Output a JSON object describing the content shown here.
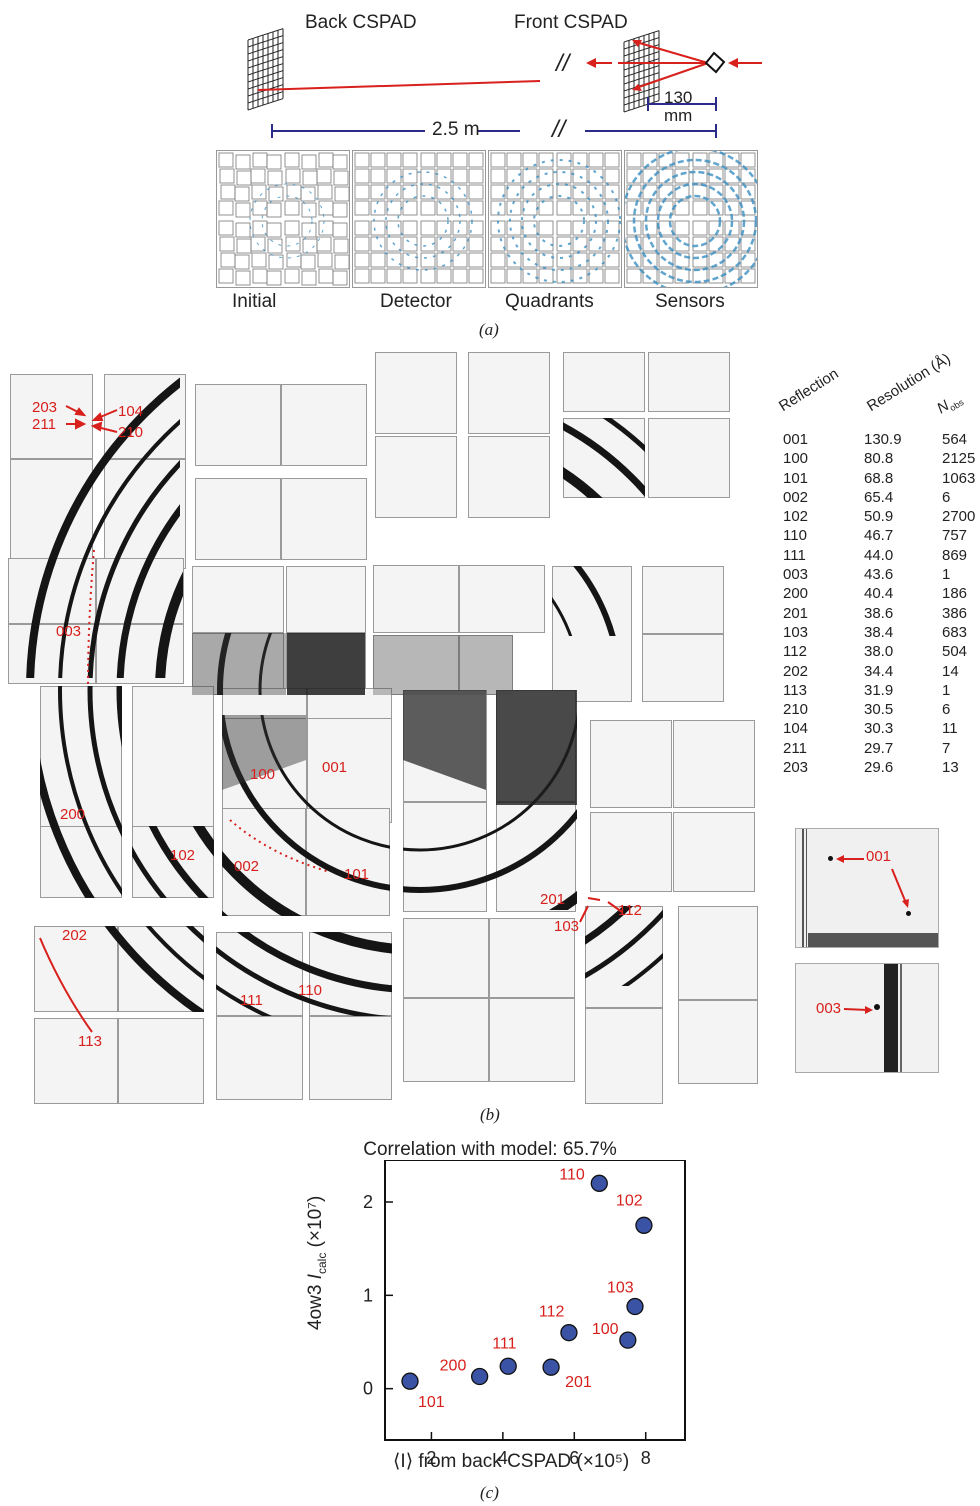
{
  "panel_a": {
    "back_label": "Back CSPAD",
    "front_label": "Front CSPAD",
    "break_symbol": "//",
    "distance_long": "2.5 m",
    "distance_short_num": "130",
    "distance_short_unit": "mm",
    "stage_labels": [
      "Initial",
      "Detector",
      "Quadrants",
      "Sensors"
    ],
    "caption": "(a)"
  },
  "panel_b": {
    "caption": "(b)",
    "labels": {
      "l203": "203",
      "l104": "104",
      "l211": "211",
      "l210": "210",
      "l003": "003",
      "l200": "200",
      "l100": "100",
      "l001": "001",
      "l102": "102",
      "l002": "002",
      "l101": "101",
      "l202": "202",
      "l113": "113",
      "l111": "111",
      "l110": "110",
      "l201": "201",
      "l112": "112",
      "l103": "103"
    },
    "table": {
      "headers": [
        "Reflection",
        "Resolution (Å)",
        "N",
        "obs"
      ],
      "rows": [
        [
          "001",
          "130.9",
          "564"
        ],
        [
          "100",
          "80.8",
          "2125"
        ],
        [
          "101",
          "68.8",
          "1063"
        ],
        [
          "002",
          "65.4",
          "6"
        ],
        [
          "102",
          "50.9",
          "2700"
        ],
        [
          "110",
          "46.7",
          "757"
        ],
        [
          "111",
          "44.0",
          "869"
        ],
        [
          "003",
          "43.6",
          "1"
        ],
        [
          "200",
          "40.4",
          "186"
        ],
        [
          "201",
          "38.6",
          "386"
        ],
        [
          "103",
          "38.4",
          "683"
        ],
        [
          "112",
          "38.0",
          "504"
        ],
        [
          "202",
          "34.4",
          "14"
        ],
        [
          "113",
          "31.9",
          "1"
        ],
        [
          "210",
          "30.5",
          "6"
        ],
        [
          "104",
          "30.3",
          "11"
        ],
        [
          "211",
          "29.7",
          "7"
        ],
        [
          "203",
          "29.6",
          "13"
        ]
      ]
    },
    "inset_labels": {
      "inset1": "001",
      "inset2": "003"
    }
  },
  "panel_c": {
    "caption": "(c)",
    "chart_data": {
      "type": "scatter",
      "title": "Correlation with model: 65.7%",
      "xlabel": "⟨I⟩ from back CSPAD (×10⁵)",
      "ylabel_prefix": "4ow3 ",
      "ylabel_I": "I",
      "ylabel_sub": "calc",
      "ylabel_suffix": " (×10⁷)",
      "xlim": [
        0.7,
        9.1
      ],
      "ylim": [
        -0.55,
        2.45
      ],
      "xticks": [
        2,
        4,
        6,
        8
      ],
      "yticks": [
        0,
        1,
        2
      ],
      "xtick_labels": [
        "2",
        "4",
        "6",
        "8"
      ],
      "ytick_labels": [
        "0",
        "1",
        "2"
      ],
      "points": [
        {
          "label": "101",
          "x": 1.4,
          "y": 0.08
        },
        {
          "label": "200",
          "x": 3.35,
          "y": 0.13
        },
        {
          "label": "111",
          "x": 4.15,
          "y": 0.24
        },
        {
          "label": "201",
          "x": 5.35,
          "y": 0.23
        },
        {
          "label": "112",
          "x": 5.85,
          "y": 0.6
        },
        {
          "label": "110",
          "x": 6.7,
          "y": 2.2
        },
        {
          "label": "100",
          "x": 7.5,
          "y": 0.52
        },
        {
          "label": "103",
          "x": 7.7,
          "y": 0.88
        },
        {
          "label": "102",
          "x": 7.95,
          "y": 1.75
        }
      ],
      "point_color": "#3a53a4",
      "label_color": "#d8201c"
    }
  }
}
